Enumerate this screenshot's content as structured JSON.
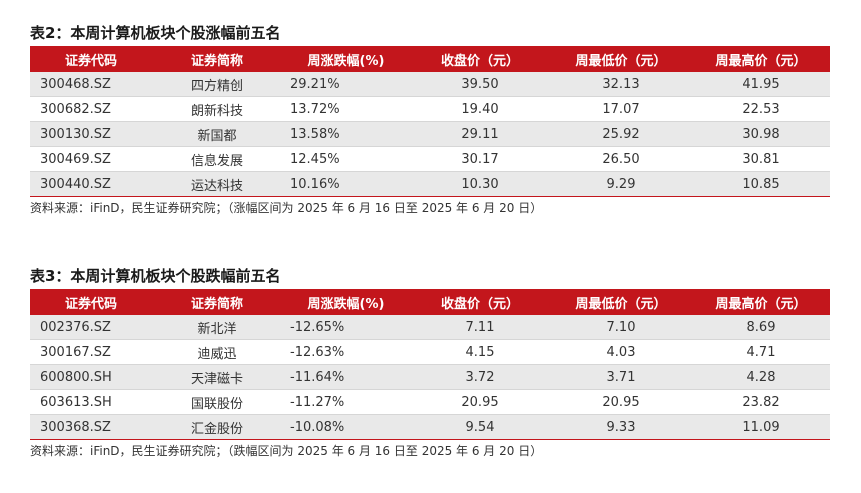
{
  "table2": {
    "title": "表2：本周计算机板块个股涨幅前五名",
    "headers": [
      "证券代码",
      "证券简称",
      "周涨跌幅(%)",
      "收盘价（元）",
      "周最低价（元）",
      "周最高价（元）"
    ],
    "rows": [
      [
        "300468.SZ",
        "四方精创",
        "29.21%",
        "39.50",
        "32.13",
        "41.95"
      ],
      [
        "300682.SZ",
        "朗新科技",
        "13.72%",
        "19.40",
        "17.07",
        "22.53"
      ],
      [
        "300130.SZ",
        "新国都",
        "13.58%",
        "29.11",
        "25.92",
        "30.98"
      ],
      [
        "300469.SZ",
        "信息发展",
        "12.45%",
        "30.17",
        "26.50",
        "30.81"
      ],
      [
        "300440.SZ",
        "运达科技",
        "10.16%",
        "10.30",
        "9.29",
        "10.85"
      ]
    ],
    "source": "资料来源：iFinD，民生证券研究院；（涨幅区间为 2025 年 6 月 16 日至 2025 年 6 月 20 日）"
  },
  "table3": {
    "title": "表3：本周计算机板块个股跌幅前五名",
    "headers": [
      "证券代码",
      "证券简称",
      "周涨跌幅(%)",
      "收盘价（元）",
      "周最低价（元）",
      "周最高价（元）"
    ],
    "rows": [
      [
        "002376.SZ",
        "新北洋",
        "-12.65%",
        "7.11",
        "7.10",
        "8.69"
      ],
      [
        "300167.SZ",
        "迪威迅",
        "-12.63%",
        "4.15",
        "4.03",
        "4.71"
      ],
      [
        "600800.SH",
        "天津磁卡",
        "-11.64%",
        "3.72",
        "3.71",
        "4.28"
      ],
      [
        "603613.SH",
        "国联股份",
        "-11.27%",
        "20.95",
        "20.95",
        "23.82"
      ],
      [
        "300368.SZ",
        "汇金股份",
        "-10.08%",
        "9.54",
        "9.33",
        "11.09"
      ]
    ],
    "source": "资料来源：iFinD，民生证券研究院；（跌幅区间为 2025 年 6 月 16 日至 2025 年 6 月 20 日）"
  },
  "colors": {
    "header_bg": "#c3161c",
    "header_text": "#ffffff",
    "stripe": "#e9e9e9"
  }
}
